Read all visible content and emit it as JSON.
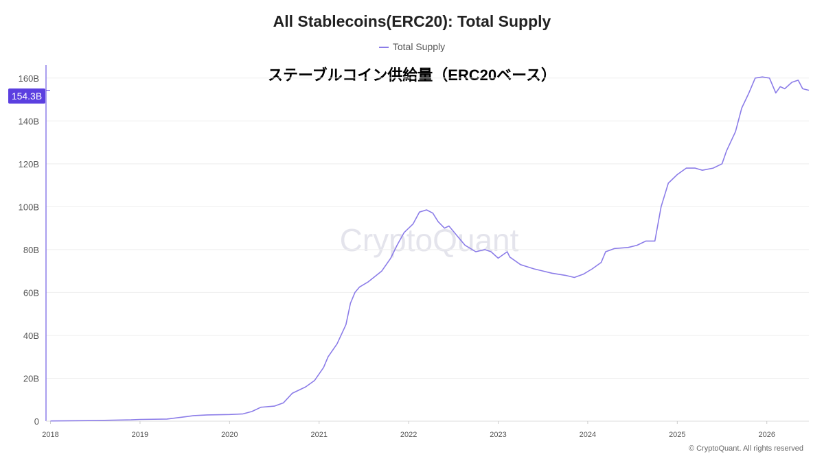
{
  "chart_data": {
    "type": "line",
    "title": "All Stablecoins(ERC20): Total Supply",
    "subtitle": "ステーブルコイン供給量（ERC20ベース）",
    "legend": [
      "Total Supply"
    ],
    "legend_placement": "top-center",
    "xlabel": "",
    "ylabel": "",
    "x_ticks": [
      "2018",
      "2019",
      "2020",
      "2021",
      "2022",
      "2023",
      "2024",
      "2025",
      "2026"
    ],
    "y_ticks": [
      "0",
      "20B",
      "40B",
      "60B",
      "80B",
      "100B",
      "120B",
      "140B",
      "160B"
    ],
    "xlim": [
      2017.95,
      2026.47
    ],
    "ylim": [
      0,
      166
    ],
    "grid": "horizontal",
    "series_color": "#8b7ce8",
    "current_value_label": "154.3B",
    "watermark": "CryptoQuant",
    "copyright": "© CryptoQuant. All rights reserved",
    "series": [
      {
        "name": "Total Supply",
        "unit": "B",
        "points": [
          [
            2018.0,
            0.1
          ],
          [
            2018.5,
            0.3
          ],
          [
            2018.9,
            0.6
          ],
          [
            2019.0,
            0.8
          ],
          [
            2019.3,
            1.0
          ],
          [
            2019.5,
            2.0
          ],
          [
            2019.6,
            2.6
          ],
          [
            2019.75,
            2.9
          ],
          [
            2020.0,
            3.1
          ],
          [
            2020.15,
            3.4
          ],
          [
            2020.25,
            4.5
          ],
          [
            2020.35,
            6.5
          ],
          [
            2020.5,
            7.0
          ],
          [
            2020.6,
            8.5
          ],
          [
            2020.7,
            13.0
          ],
          [
            2020.85,
            16.0
          ],
          [
            2020.95,
            19.0
          ],
          [
            2021.05,
            25.0
          ],
          [
            2021.1,
            30.0
          ],
          [
            2021.2,
            36.0
          ],
          [
            2021.3,
            45.0
          ],
          [
            2021.35,
            55.0
          ],
          [
            2021.4,
            60.0
          ],
          [
            2021.45,
            62.5
          ],
          [
            2021.55,
            65.0
          ],
          [
            2021.7,
            70.0
          ],
          [
            2021.8,
            76.0
          ],
          [
            2021.87,
            82.0
          ],
          [
            2021.95,
            88.0
          ],
          [
            2022.05,
            92.0
          ],
          [
            2022.12,
            97.5
          ],
          [
            2022.2,
            98.5
          ],
          [
            2022.27,
            97.0
          ],
          [
            2022.33,
            93.0
          ],
          [
            2022.4,
            90.0
          ],
          [
            2022.45,
            91.0
          ],
          [
            2022.55,
            86.0
          ],
          [
            2022.63,
            82.0
          ],
          [
            2022.75,
            79.0
          ],
          [
            2022.85,
            80.0
          ],
          [
            2022.92,
            79.0
          ],
          [
            2023.0,
            76.0
          ],
          [
            2023.1,
            79.0
          ],
          [
            2023.13,
            76.5
          ],
          [
            2023.25,
            73.0
          ],
          [
            2023.4,
            71.0
          ],
          [
            2023.5,
            70.0
          ],
          [
            2023.6,
            69.0
          ],
          [
            2023.75,
            68.0
          ],
          [
            2023.85,
            67.0
          ],
          [
            2023.95,
            68.5
          ],
          [
            2024.05,
            71.0
          ],
          [
            2024.15,
            74.0
          ],
          [
            2024.2,
            79.0
          ],
          [
            2024.3,
            80.5
          ],
          [
            2024.45,
            81.0
          ],
          [
            2024.55,
            82.0
          ],
          [
            2024.65,
            84.0
          ],
          [
            2024.75,
            84.0
          ],
          [
            2024.82,
            100.0
          ],
          [
            2024.9,
            111.0
          ],
          [
            2025.0,
            115.0
          ],
          [
            2025.1,
            118.0
          ],
          [
            2025.2,
            118.0
          ],
          [
            2025.28,
            117.0
          ],
          [
            2025.4,
            118.0
          ],
          [
            2025.5,
            120.0
          ],
          [
            2025.55,
            126.0
          ],
          [
            2025.65,
            135.0
          ],
          [
            2025.72,
            146.0
          ],
          [
            2025.8,
            153.0
          ],
          [
            2025.87,
            160.0
          ],
          [
            2025.95,
            160.5
          ],
          [
            2026.03,
            160.0
          ],
          [
            2026.1,
            153.0
          ],
          [
            2026.15,
            156.0
          ],
          [
            2026.2,
            155.0
          ],
          [
            2026.28,
            158.0
          ],
          [
            2026.35,
            159.0
          ],
          [
            2026.4,
            155.0
          ],
          [
            2026.47,
            154.3
          ]
        ]
      }
    ]
  }
}
